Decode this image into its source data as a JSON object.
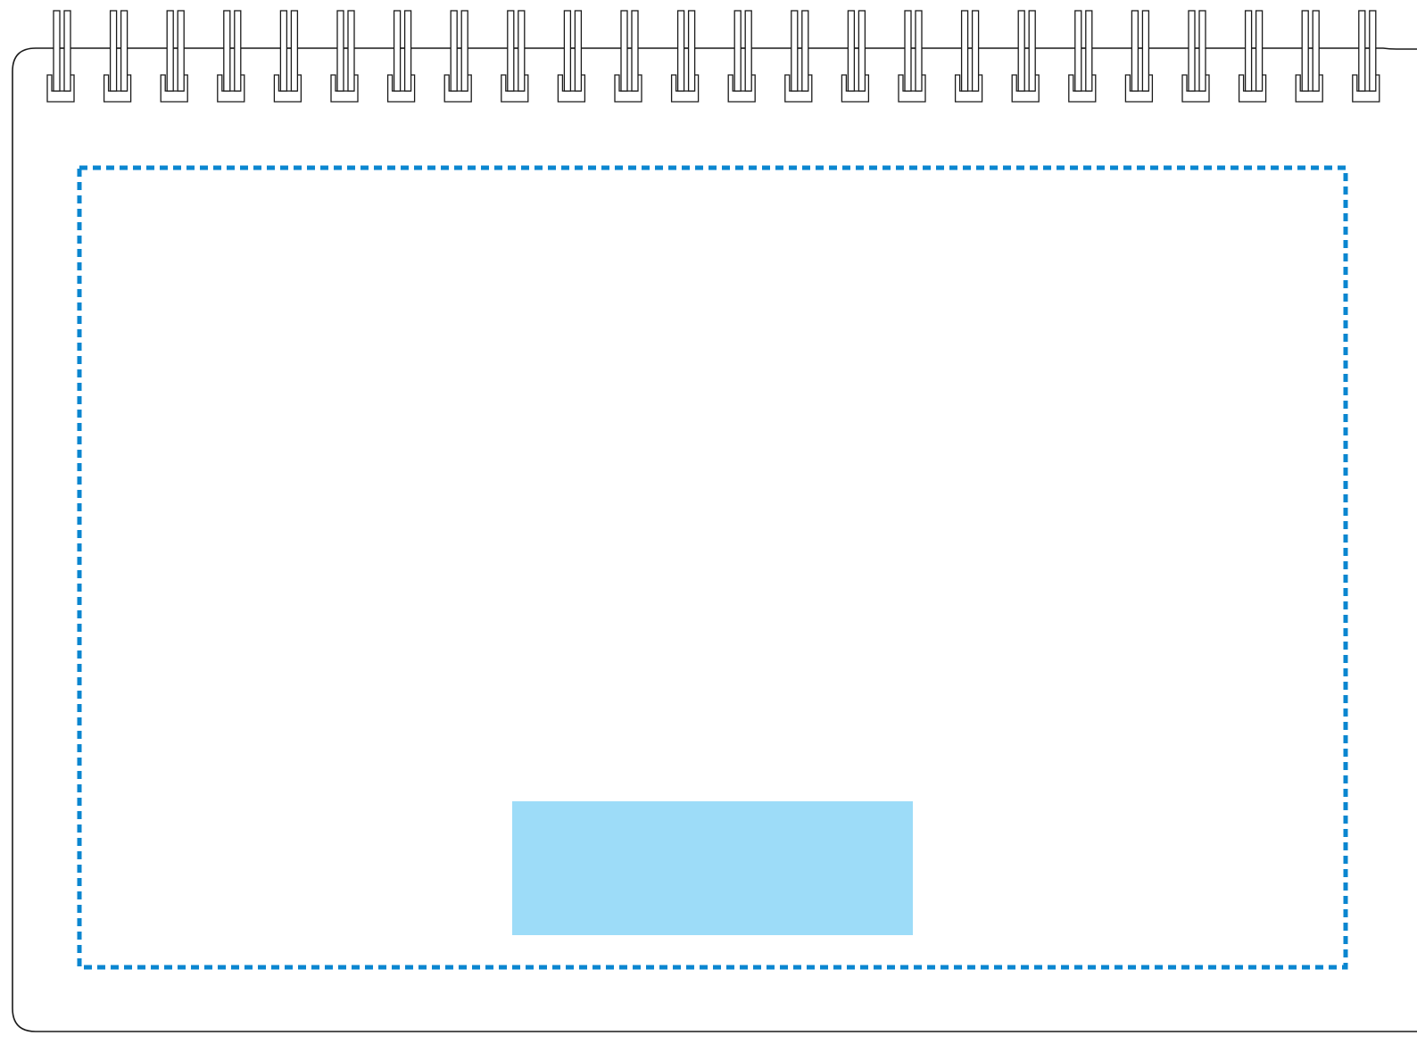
{
  "notebook": {
    "spiral_ring_count": 24,
    "colors": {
      "outline": "#1a1a1a",
      "page_background": "#ffffff",
      "print_area_border": "#0a86d0",
      "logo_area_fill": "#9ddcf8"
    }
  }
}
